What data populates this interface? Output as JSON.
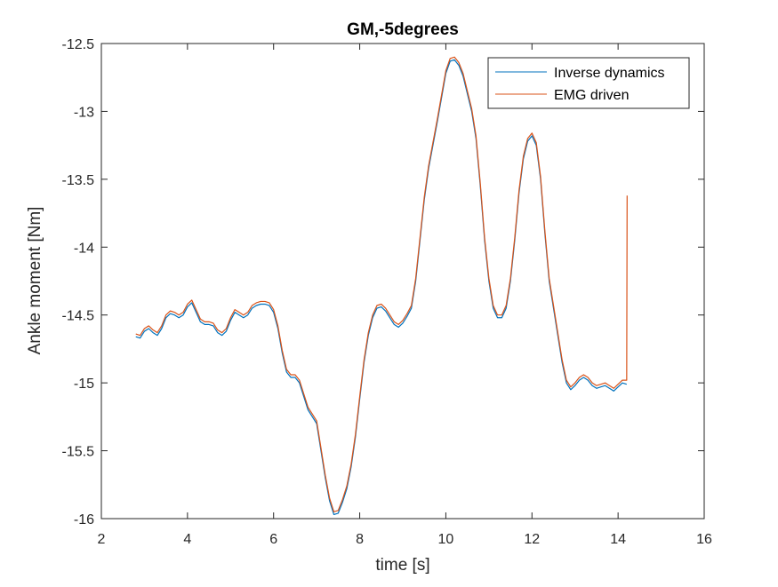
{
  "chart_data": {
    "type": "line",
    "title": "GM,-5degrees",
    "xlabel": "time  [s]",
    "ylabel": "Ankle moment [Nm]",
    "xlim": [
      2,
      16
    ],
    "ylim": [
      -16,
      -12.5
    ],
    "xticks": [
      2,
      4,
      6,
      8,
      10,
      12,
      14,
      16
    ],
    "yticks": [
      -16,
      -15.5,
      -15,
      -14.5,
      -14,
      -13.5,
      -13,
      -12.5
    ],
    "xtick_labels": [
      "2",
      "4",
      "6",
      "8",
      "10",
      "12",
      "14",
      "16"
    ],
    "ytick_labels": [
      "-16",
      "-15.5",
      "-15",
      "-14.5",
      "-14",
      "-13.5",
      "-13",
      "-12.5"
    ],
    "grid": false,
    "legend_position": "top-right",
    "series": [
      {
        "name": "Inverse dynamics",
        "color": "#0072BD",
        "points": [
          [
            2.8,
            -14.66
          ],
          [
            2.9,
            -14.67
          ],
          [
            3.0,
            -14.62
          ],
          [
            3.1,
            -14.6
          ],
          [
            3.2,
            -14.63
          ],
          [
            3.3,
            -14.65
          ],
          [
            3.4,
            -14.6
          ],
          [
            3.5,
            -14.52
          ],
          [
            3.6,
            -14.49
          ],
          [
            3.7,
            -14.5
          ],
          [
            3.8,
            -14.52
          ],
          [
            3.9,
            -14.5
          ],
          [
            4.0,
            -14.44
          ],
          [
            4.1,
            -14.41
          ],
          [
            4.2,
            -14.48
          ],
          [
            4.3,
            -14.55
          ],
          [
            4.4,
            -14.57
          ],
          [
            4.5,
            -14.57
          ],
          [
            4.6,
            -14.58
          ],
          [
            4.7,
            -14.63
          ],
          [
            4.8,
            -14.65
          ],
          [
            4.9,
            -14.62
          ],
          [
            5.0,
            -14.54
          ],
          [
            5.1,
            -14.48
          ],
          [
            5.2,
            -14.5
          ],
          [
            5.3,
            -14.52
          ],
          [
            5.4,
            -14.5
          ],
          [
            5.5,
            -14.45
          ],
          [
            5.6,
            -14.43
          ],
          [
            5.7,
            -14.42
          ],
          [
            5.8,
            -14.42
          ],
          [
            5.9,
            -14.43
          ],
          [
            6.0,
            -14.48
          ],
          [
            6.1,
            -14.6
          ],
          [
            6.2,
            -14.78
          ],
          [
            6.3,
            -14.92
          ],
          [
            6.4,
            -14.96
          ],
          [
            6.5,
            -14.96
          ],
          [
            6.6,
            -15.0
          ],
          [
            6.7,
            -15.1
          ],
          [
            6.8,
            -15.2
          ],
          [
            6.9,
            -15.25
          ],
          [
            7.0,
            -15.3
          ],
          [
            7.1,
            -15.5
          ],
          [
            7.2,
            -15.7
          ],
          [
            7.3,
            -15.87
          ],
          [
            7.4,
            -15.97
          ],
          [
            7.5,
            -15.96
          ],
          [
            7.6,
            -15.88
          ],
          [
            7.7,
            -15.78
          ],
          [
            7.8,
            -15.62
          ],
          [
            7.9,
            -15.4
          ],
          [
            8.0,
            -15.12
          ],
          [
            8.1,
            -14.85
          ],
          [
            8.2,
            -14.65
          ],
          [
            8.3,
            -14.52
          ],
          [
            8.4,
            -14.45
          ],
          [
            8.5,
            -14.44
          ],
          [
            8.6,
            -14.47
          ],
          [
            8.7,
            -14.52
          ],
          [
            8.8,
            -14.57
          ],
          [
            8.9,
            -14.59
          ],
          [
            9.0,
            -14.56
          ],
          [
            9.1,
            -14.51
          ],
          [
            9.2,
            -14.45
          ],
          [
            9.3,
            -14.25
          ],
          [
            9.4,
            -13.95
          ],
          [
            9.5,
            -13.65
          ],
          [
            9.6,
            -13.42
          ],
          [
            9.7,
            -13.25
          ],
          [
            9.8,
            -13.08
          ],
          [
            9.9,
            -12.9
          ],
          [
            10.0,
            -12.72
          ],
          [
            10.1,
            -12.63
          ],
          [
            10.2,
            -12.62
          ],
          [
            10.3,
            -12.66
          ],
          [
            10.4,
            -12.74
          ],
          [
            10.5,
            -12.87
          ],
          [
            10.6,
            -13.0
          ],
          [
            10.7,
            -13.2
          ],
          [
            10.8,
            -13.55
          ],
          [
            10.9,
            -13.95
          ],
          [
            11.0,
            -14.25
          ],
          [
            11.1,
            -14.45
          ],
          [
            11.2,
            -14.52
          ],
          [
            11.3,
            -14.52
          ],
          [
            11.4,
            -14.45
          ],
          [
            11.5,
            -14.25
          ],
          [
            11.6,
            -13.95
          ],
          [
            11.7,
            -13.6
          ],
          [
            11.8,
            -13.35
          ],
          [
            11.9,
            -13.22
          ],
          [
            12.0,
            -13.18
          ],
          [
            12.1,
            -13.25
          ],
          [
            12.2,
            -13.5
          ],
          [
            12.3,
            -13.9
          ],
          [
            12.4,
            -14.25
          ],
          [
            12.5,
            -14.45
          ],
          [
            12.6,
            -14.65
          ],
          [
            12.7,
            -14.85
          ],
          [
            12.8,
            -15.0
          ],
          [
            12.9,
            -15.05
          ],
          [
            13.0,
            -15.02
          ],
          [
            13.1,
            -14.98
          ],
          [
            13.2,
            -14.96
          ],
          [
            13.3,
            -14.98
          ],
          [
            13.4,
            -15.02
          ],
          [
            13.5,
            -15.04
          ],
          [
            13.6,
            -15.03
          ],
          [
            13.7,
            -15.02
          ],
          [
            13.8,
            -15.04
          ],
          [
            13.9,
            -15.06
          ],
          [
            14.0,
            -15.03
          ],
          [
            14.1,
            -15.0
          ],
          [
            14.2,
            -15.01
          ]
        ]
      },
      {
        "name": "EMG driven",
        "color": "#D95319",
        "points": [
          [
            2.8,
            -14.64
          ],
          [
            2.9,
            -14.65
          ],
          [
            3.0,
            -14.6
          ],
          [
            3.1,
            -14.58
          ],
          [
            3.2,
            -14.61
          ],
          [
            3.3,
            -14.63
          ],
          [
            3.4,
            -14.58
          ],
          [
            3.5,
            -14.5
          ],
          [
            3.6,
            -14.47
          ],
          [
            3.7,
            -14.48
          ],
          [
            3.8,
            -14.5
          ],
          [
            3.9,
            -14.48
          ],
          [
            4.0,
            -14.42
          ],
          [
            4.1,
            -14.39
          ],
          [
            4.2,
            -14.46
          ],
          [
            4.3,
            -14.53
          ],
          [
            4.4,
            -14.55
          ],
          [
            4.5,
            -14.55
          ],
          [
            4.6,
            -14.56
          ],
          [
            4.7,
            -14.61
          ],
          [
            4.8,
            -14.63
          ],
          [
            4.9,
            -14.6
          ],
          [
            5.0,
            -14.52
          ],
          [
            5.1,
            -14.46
          ],
          [
            5.2,
            -14.48
          ],
          [
            5.3,
            -14.5
          ],
          [
            5.4,
            -14.48
          ],
          [
            5.5,
            -14.43
          ],
          [
            5.6,
            -14.41
          ],
          [
            5.7,
            -14.4
          ],
          [
            5.8,
            -14.4
          ],
          [
            5.9,
            -14.41
          ],
          [
            6.0,
            -14.46
          ],
          [
            6.1,
            -14.58
          ],
          [
            6.2,
            -14.76
          ],
          [
            6.3,
            -14.9
          ],
          [
            6.4,
            -14.94
          ],
          [
            6.5,
            -14.94
          ],
          [
            6.6,
            -14.98
          ],
          [
            6.7,
            -15.08
          ],
          [
            6.8,
            -15.18
          ],
          [
            6.9,
            -15.23
          ],
          [
            7.0,
            -15.28
          ],
          [
            7.1,
            -15.48
          ],
          [
            7.2,
            -15.68
          ],
          [
            7.3,
            -15.85
          ],
          [
            7.4,
            -15.95
          ],
          [
            7.5,
            -15.94
          ],
          [
            7.6,
            -15.86
          ],
          [
            7.7,
            -15.76
          ],
          [
            7.8,
            -15.6
          ],
          [
            7.9,
            -15.38
          ],
          [
            8.0,
            -15.1
          ],
          [
            8.1,
            -14.83
          ],
          [
            8.2,
            -14.63
          ],
          [
            8.3,
            -14.5
          ],
          [
            8.4,
            -14.43
          ],
          [
            8.5,
            -14.42
          ],
          [
            8.6,
            -14.45
          ],
          [
            8.7,
            -14.5
          ],
          [
            8.8,
            -14.55
          ],
          [
            8.9,
            -14.57
          ],
          [
            9.0,
            -14.54
          ],
          [
            9.1,
            -14.49
          ],
          [
            9.2,
            -14.43
          ],
          [
            9.3,
            -14.23
          ],
          [
            9.4,
            -13.93
          ],
          [
            9.5,
            -13.63
          ],
          [
            9.6,
            -13.4
          ],
          [
            9.7,
            -13.23
          ],
          [
            9.8,
            -13.06
          ],
          [
            9.9,
            -12.88
          ],
          [
            10.0,
            -12.7
          ],
          [
            10.1,
            -12.61
          ],
          [
            10.2,
            -12.6
          ],
          [
            10.3,
            -12.64
          ],
          [
            10.4,
            -12.72
          ],
          [
            10.5,
            -12.85
          ],
          [
            10.6,
            -12.98
          ],
          [
            10.7,
            -13.18
          ],
          [
            10.8,
            -13.53
          ],
          [
            10.9,
            -13.93
          ],
          [
            11.0,
            -14.23
          ],
          [
            11.1,
            -14.43
          ],
          [
            11.2,
            -14.5
          ],
          [
            11.3,
            -14.5
          ],
          [
            11.4,
            -14.43
          ],
          [
            11.5,
            -14.23
          ],
          [
            11.6,
            -13.93
          ],
          [
            11.7,
            -13.58
          ],
          [
            11.8,
            -13.33
          ],
          [
            11.9,
            -13.2
          ],
          [
            12.0,
            -13.16
          ],
          [
            12.1,
            -13.23
          ],
          [
            12.2,
            -13.48
          ],
          [
            12.3,
            -13.88
          ],
          [
            12.4,
            -14.23
          ],
          [
            12.5,
            -14.43
          ],
          [
            12.6,
            -14.63
          ],
          [
            12.7,
            -14.83
          ],
          [
            12.8,
            -14.98
          ],
          [
            12.9,
            -15.03
          ],
          [
            13.0,
            -15.0
          ],
          [
            13.1,
            -14.96
          ],
          [
            13.2,
            -14.94
          ],
          [
            13.3,
            -14.96
          ],
          [
            13.4,
            -15.0
          ],
          [
            13.5,
            -15.02
          ],
          [
            13.6,
            -15.01
          ],
          [
            13.7,
            -15.0
          ],
          [
            13.8,
            -15.02
          ],
          [
            13.9,
            -15.04
          ],
          [
            14.0,
            -15.01
          ],
          [
            14.1,
            -14.98
          ],
          [
            14.2,
            -14.98
          ],
          [
            14.21,
            -13.62
          ]
        ]
      }
    ]
  }
}
